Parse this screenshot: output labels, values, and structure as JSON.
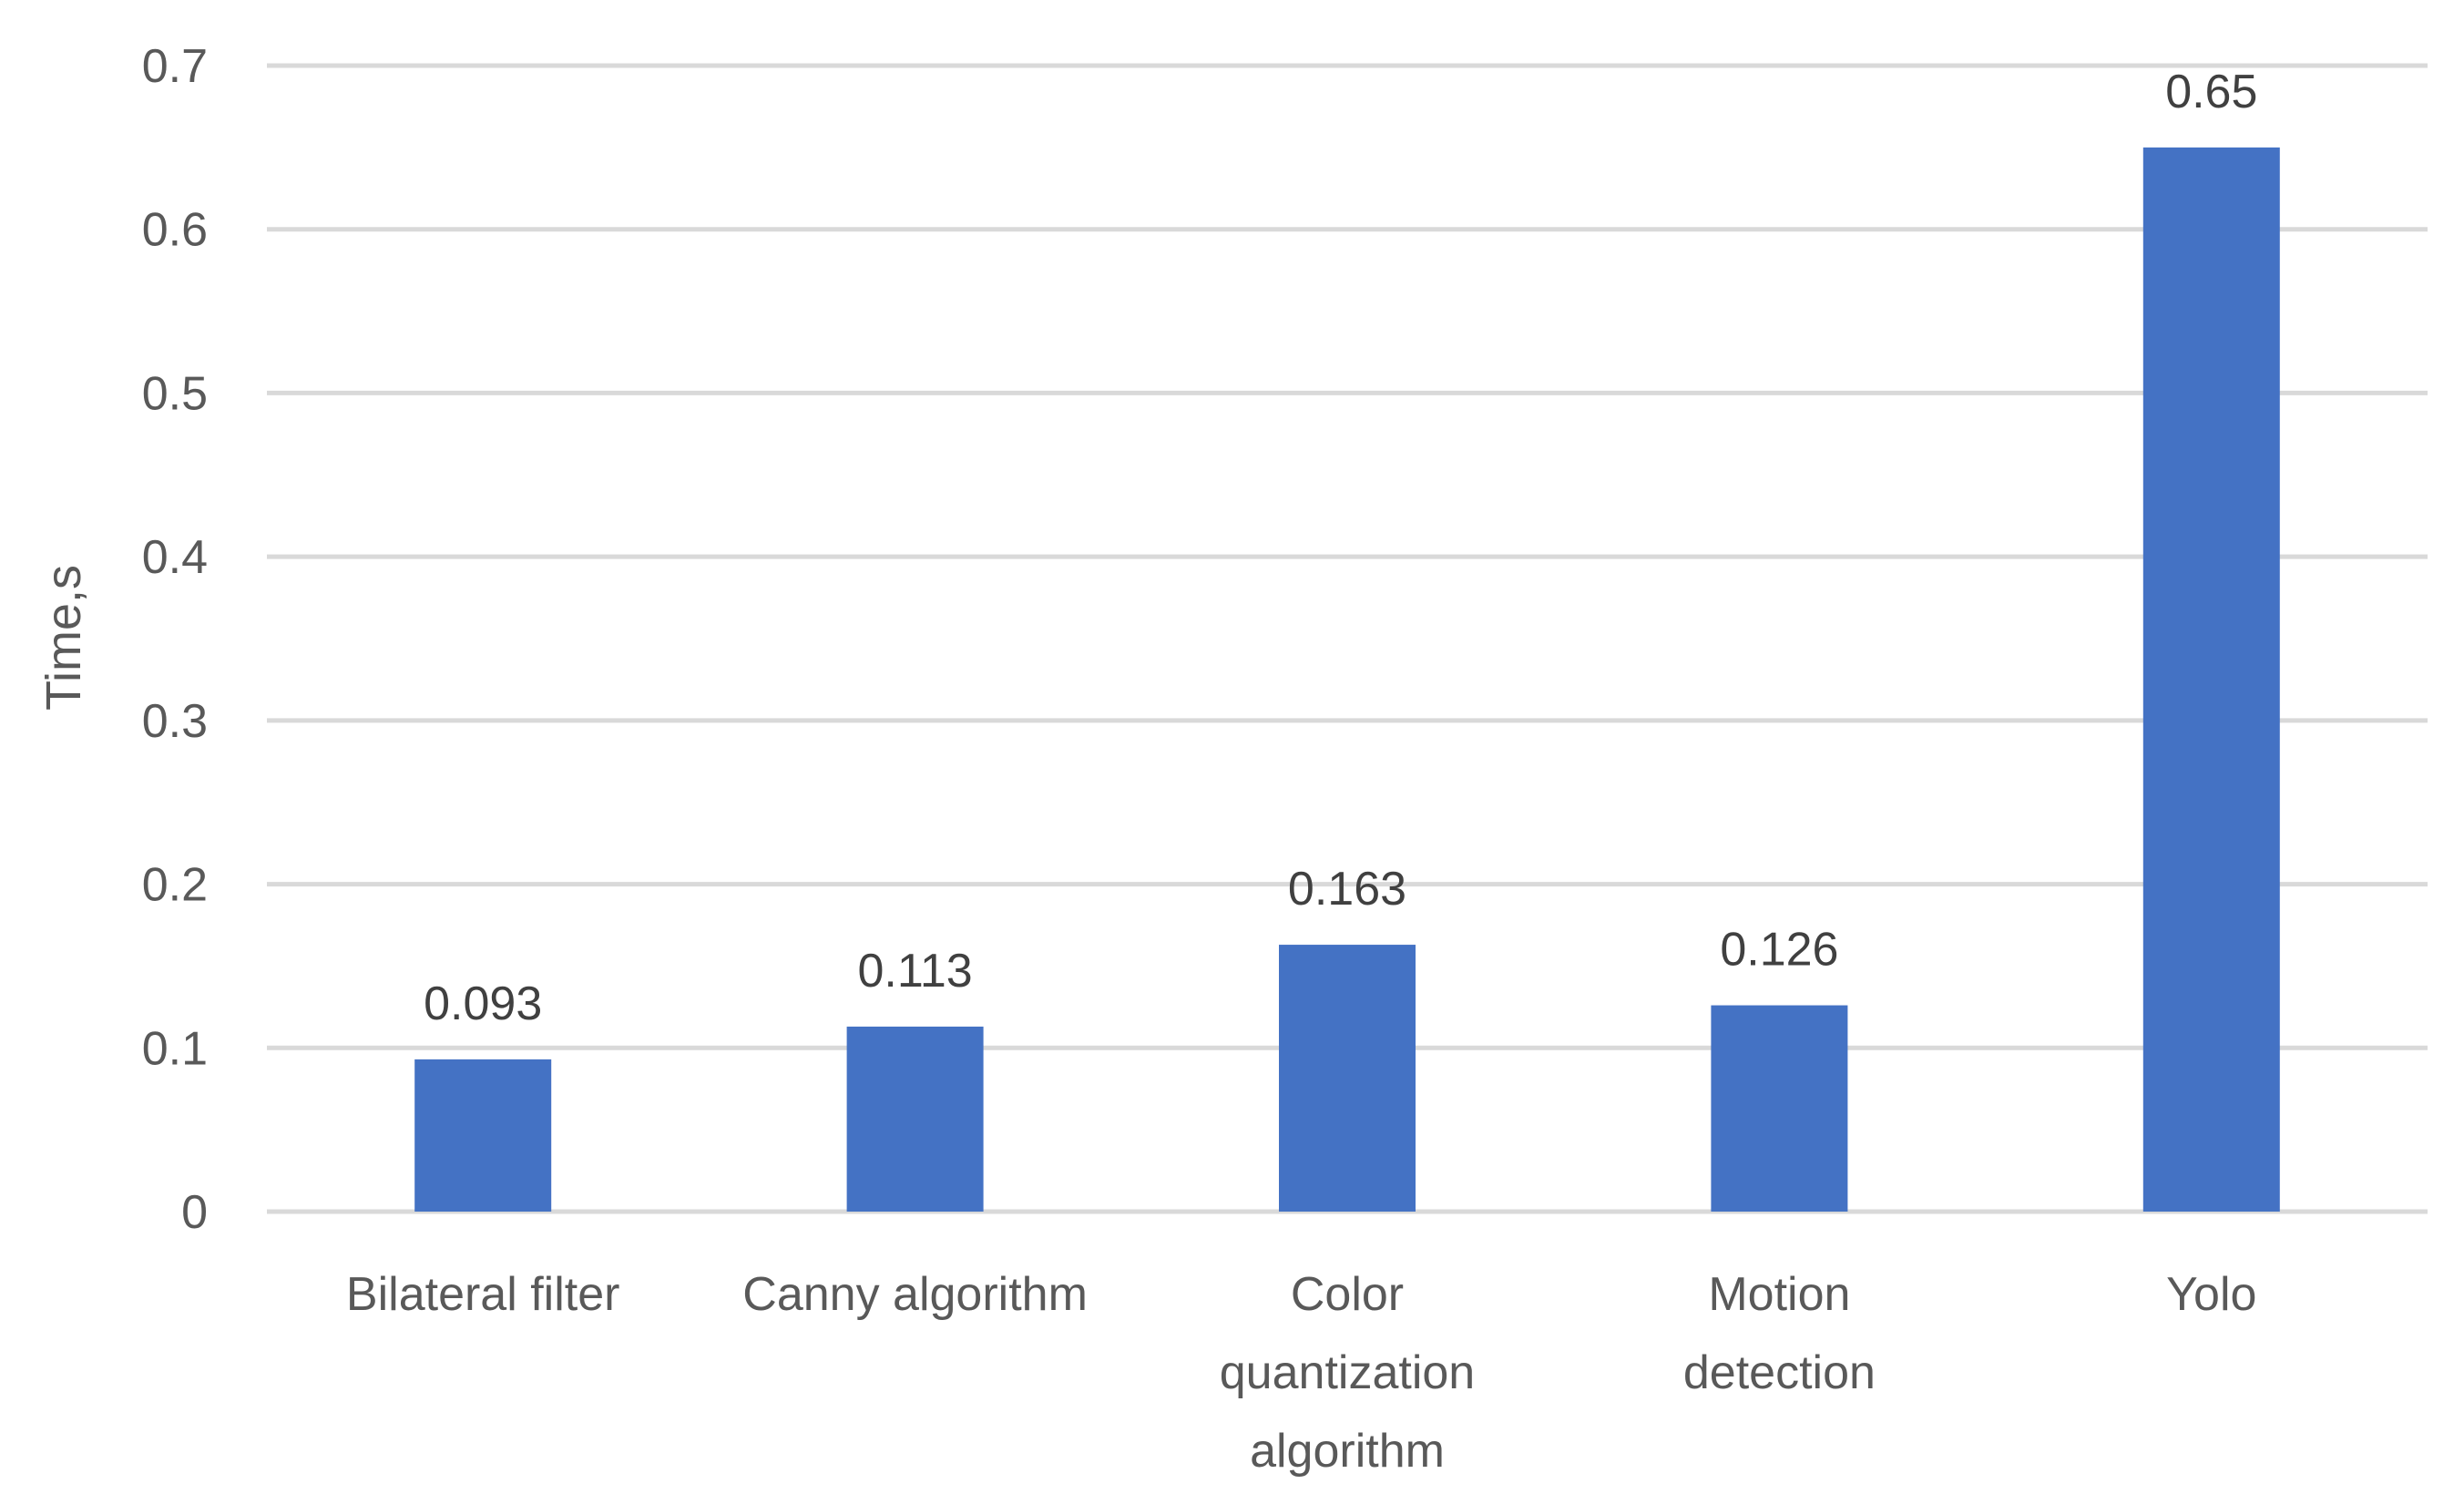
{
  "chart_data": {
    "type": "bar",
    "title": "",
    "xlabel": "",
    "ylabel": "Time,s",
    "categories": [
      "Bilateral filter",
      "Canny algorithm",
      "Color quantization algorithm",
      "Motion detection",
      "Yolo"
    ],
    "values": [
      0.093,
      0.113,
      0.163,
      0.126,
      0.65
    ],
    "data_labels": [
      "0.093",
      "0.113",
      "0.163",
      "0.126",
      "0.65"
    ],
    "ylim": [
      0,
      0.7
    ],
    "yticks": [
      0,
      0.1,
      0.2,
      0.3,
      0.4,
      0.5,
      0.6,
      0.7
    ],
    "ytick_labels": [
      "0",
      "0.1",
      "0.2",
      "0.3",
      "0.4",
      "0.5",
      "0.6",
      "0.7"
    ],
    "grid": true,
    "legend": "none",
    "colors": {
      "bar": "#4472C4",
      "grid": "#D9D9D9",
      "text": "#595959",
      "data_label": "#404040"
    }
  }
}
